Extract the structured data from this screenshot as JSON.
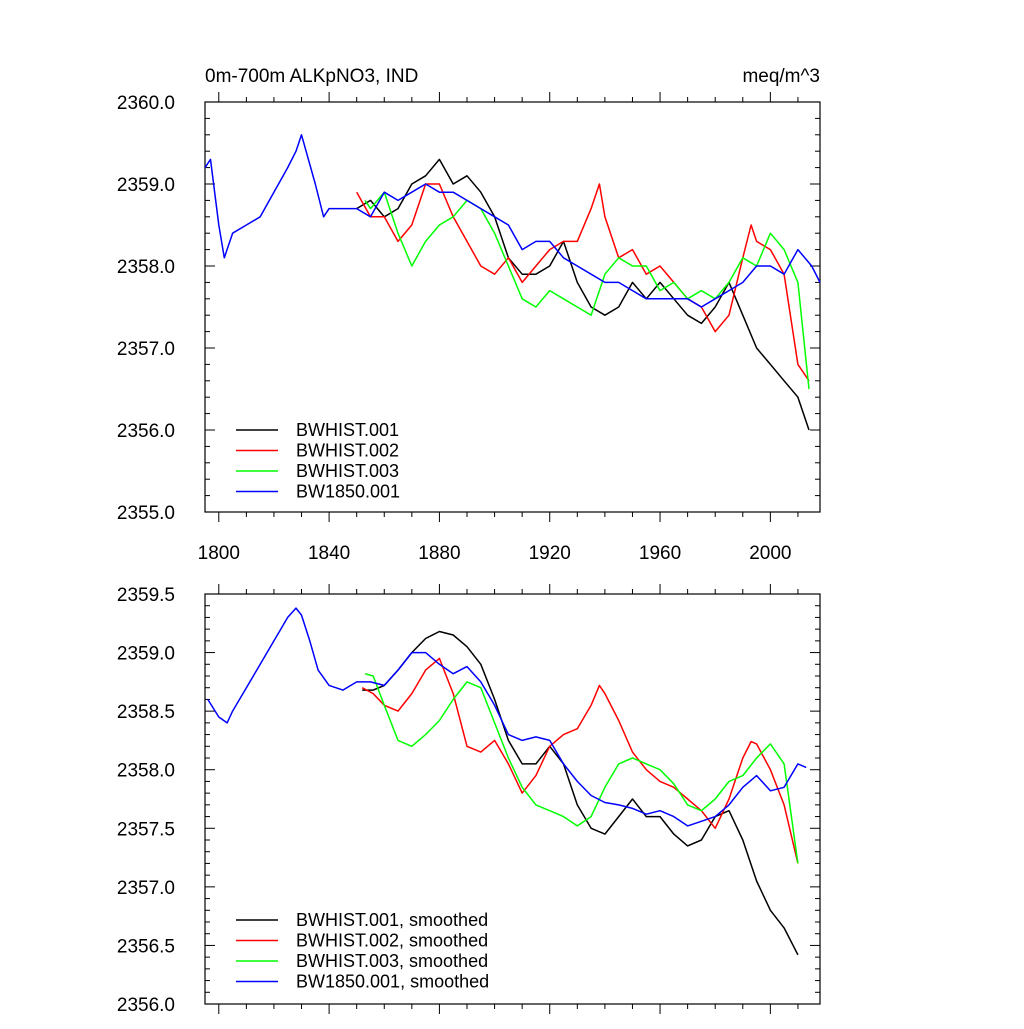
{
  "chart_data": [
    {
      "type": "line",
      "title": "0m-700m ALKpNO3, IND",
      "units": "meq/m^3",
      "ylim": [
        2355.0,
        2360.0
      ],
      "xlim": [
        1795,
        2018
      ],
      "yticks": [
        2355.0,
        2356.0,
        2357.0,
        2358.0,
        2359.0,
        2360.0
      ],
      "ytick_labels": [
        "2355.0",
        "2356.0",
        "2357.0",
        "2358.0",
        "2359.0",
        "2360.0"
      ],
      "xticks": [
        1800,
        1840,
        1880,
        1920,
        1960,
        2000
      ],
      "xtick_labels": [
        "1800",
        "1840",
        "1880",
        "1920",
        "1960",
        "2000"
      ],
      "legend_position": "bottom-left",
      "series": [
        {
          "name": "BWHIST.001",
          "color": "#000000",
          "x": [
            1850,
            1855,
            1860,
            1865,
            1870,
            1875,
            1880,
            1885,
            1890,
            1895,
            1900,
            1905,
            1910,
            1915,
            1920,
            1925,
            1930,
            1935,
            1940,
            1945,
            1950,
            1955,
            1960,
            1965,
            1970,
            1975,
            1980,
            1985,
            1990,
            1995,
            2000,
            2005,
            2010,
            2014
          ],
          "y": [
            2358.7,
            2358.8,
            2358.6,
            2358.7,
            2359.0,
            2359.1,
            2359.3,
            2359.0,
            2359.1,
            2358.9,
            2358.6,
            2358.1,
            2357.9,
            2357.9,
            2358.0,
            2358.3,
            2357.8,
            2357.5,
            2357.4,
            2357.5,
            2357.8,
            2357.6,
            2357.8,
            2357.6,
            2357.4,
            2357.3,
            2357.5,
            2357.8,
            2357.4,
            2357.0,
            2356.8,
            2356.6,
            2356.4,
            2356.0
          ]
        },
        {
          "name": "BWHIST.002",
          "color": "#ff0000",
          "x": [
            1850,
            1855,
            1860,
            1865,
            1870,
            1875,
            1880,
            1885,
            1890,
            1895,
            1900,
            1905,
            1910,
            1915,
            1920,
            1925,
            1930,
            1935,
            1938,
            1940,
            1945,
            1950,
            1955,
            1960,
            1965,
            1970,
            1975,
            1980,
            1985,
            1990,
            1993,
            1995,
            2000,
            2005,
            2010,
            2014
          ],
          "y": [
            2358.9,
            2358.6,
            2358.6,
            2358.3,
            2358.5,
            2359.0,
            2359.0,
            2358.6,
            2358.3,
            2358.0,
            2357.9,
            2358.1,
            2357.8,
            2358.0,
            2358.2,
            2358.3,
            2358.3,
            2358.7,
            2359.0,
            2358.6,
            2358.1,
            2358.2,
            2357.9,
            2358.0,
            2357.8,
            2357.6,
            2357.5,
            2357.2,
            2357.4,
            2358.1,
            2358.5,
            2358.3,
            2358.2,
            2357.9,
            2356.8,
            2356.6
          ]
        },
        {
          "name": "BWHIST.003",
          "color": "#00ff00",
          "x": [
            1853,
            1855,
            1860,
            1865,
            1870,
            1875,
            1880,
            1885,
            1890,
            1895,
            1900,
            1905,
            1910,
            1915,
            1920,
            1925,
            1930,
            1935,
            1940,
            1945,
            1950,
            1955,
            1960,
            1965,
            1970,
            1975,
            1980,
            1985,
            1990,
            1995,
            2000,
            2005,
            2010,
            2014
          ],
          "y": [
            2358.8,
            2358.7,
            2358.9,
            2358.4,
            2358.0,
            2358.3,
            2358.5,
            2358.6,
            2358.8,
            2358.7,
            2358.4,
            2358.0,
            2357.6,
            2357.5,
            2357.7,
            2357.6,
            2357.5,
            2357.4,
            2357.9,
            2358.1,
            2358.0,
            2358.0,
            2357.7,
            2357.8,
            2357.6,
            2357.7,
            2357.6,
            2357.8,
            2358.1,
            2358.0,
            2358.4,
            2358.2,
            2357.8,
            2356.5
          ]
        },
        {
          "name": "BW1850.001",
          "color": "#0000ff",
          "x": [
            1795,
            1797,
            1800,
            1802,
            1805,
            1810,
            1815,
            1820,
            1825,
            1828,
            1830,
            1835,
            1838,
            1840,
            1845,
            1850,
            1855,
            1860,
            1865,
            1870,
            1875,
            1880,
            1885,
            1890,
            1895,
            1900,
            1905,
            1910,
            1915,
            1920,
            1925,
            1930,
            1935,
            1940,
            1945,
            1950,
            1955,
            1960,
            1965,
            1970,
            1975,
            1980,
            1985,
            1990,
            1995,
            2000,
            2005,
            2010,
            2015,
            2018
          ],
          "y": [
            2359.2,
            2359.3,
            2358.5,
            2358.1,
            2358.4,
            2358.5,
            2358.6,
            2358.9,
            2359.2,
            2359.4,
            2359.6,
            2359.0,
            2358.6,
            2358.7,
            2358.7,
            2358.7,
            2358.6,
            2358.9,
            2358.8,
            2358.9,
            2359.0,
            2358.9,
            2358.9,
            2358.8,
            2358.7,
            2358.6,
            2358.5,
            2358.2,
            2358.3,
            2358.3,
            2358.1,
            2358.0,
            2357.9,
            2357.8,
            2357.8,
            2357.7,
            2357.6,
            2357.6,
            2357.6,
            2357.6,
            2357.5,
            2357.6,
            2357.7,
            2357.8,
            2358.0,
            2358.0,
            2357.9,
            2358.2,
            2358.0,
            2357.8
          ]
        }
      ]
    },
    {
      "type": "line",
      "ylim": [
        2356.0,
        2359.5
      ],
      "xlim": [
        1795,
        2018
      ],
      "yticks": [
        2356.0,
        2356.5,
        2357.0,
        2357.5,
        2358.0,
        2358.5,
        2359.0,
        2359.5
      ],
      "ytick_labels": [
        "2356.0",
        "2356.5",
        "2357.0",
        "2357.5",
        "2358.0",
        "2358.5",
        "2359.0",
        "2359.5"
      ],
      "xticks": [
        1800,
        1840,
        1880,
        1920,
        1960,
        2000
      ],
      "legend_position": "bottom-left",
      "series": [
        {
          "name": "BWHIST.001, smoothed",
          "color": "#000000",
          "x": [
            1852,
            1856,
            1860,
            1865,
            1870,
            1875,
            1880,
            1885,
            1890,
            1895,
            1900,
            1905,
            1910,
            1915,
            1920,
            1925,
            1930,
            1935,
            1940,
            1945,
            1950,
            1955,
            1960,
            1965,
            1970,
            1975,
            1980,
            1985,
            1990,
            1995,
            2000,
            2005,
            2010
          ],
          "y": [
            2358.68,
            2358.68,
            2358.72,
            2358.85,
            2359.0,
            2359.12,
            2359.18,
            2359.15,
            2359.05,
            2358.9,
            2358.6,
            2358.25,
            2358.05,
            2358.05,
            2358.2,
            2358.05,
            2357.7,
            2357.5,
            2357.45,
            2357.6,
            2357.75,
            2357.6,
            2357.6,
            2357.45,
            2357.35,
            2357.4,
            2357.6,
            2357.65,
            2357.4,
            2357.05,
            2356.8,
            2356.65,
            2356.42
          ]
        },
        {
          "name": "BWHIST.002, smoothed",
          "color": "#ff0000",
          "x": [
            1852,
            1856,
            1860,
            1865,
            1870,
            1875,
            1880,
            1885,
            1890,
            1895,
            1900,
            1905,
            1910,
            1915,
            1920,
            1925,
            1930,
            1935,
            1938,
            1940,
            1945,
            1950,
            1955,
            1960,
            1965,
            1970,
            1975,
            1980,
            1985,
            1990,
            1993,
            1995,
            2000,
            2005,
            2010
          ],
          "y": [
            2358.7,
            2358.65,
            2358.55,
            2358.5,
            2358.65,
            2358.85,
            2358.95,
            2358.65,
            2358.2,
            2358.15,
            2358.25,
            2358.05,
            2357.8,
            2357.95,
            2358.2,
            2358.3,
            2358.35,
            2358.55,
            2358.72,
            2358.65,
            2358.42,
            2358.15,
            2358.0,
            2357.9,
            2357.85,
            2357.75,
            2357.65,
            2357.5,
            2357.75,
            2358.1,
            2358.24,
            2358.22,
            2358.0,
            2357.7,
            2357.2
          ]
        },
        {
          "name": "BWHIST.003, smoothed",
          "color": "#00ff00",
          "x": [
            1853,
            1856,
            1860,
            1865,
            1870,
            1875,
            1880,
            1885,
            1890,
            1895,
            1900,
            1905,
            1910,
            1915,
            1920,
            1925,
            1930,
            1935,
            1940,
            1945,
            1950,
            1955,
            1960,
            1965,
            1970,
            1975,
            1980,
            1985,
            1990,
            1995,
            2000,
            2005,
            2010
          ],
          "y": [
            2358.82,
            2358.8,
            2358.55,
            2358.25,
            2358.2,
            2358.3,
            2358.42,
            2358.6,
            2358.75,
            2358.7,
            2358.4,
            2358.1,
            2357.85,
            2357.7,
            2357.65,
            2357.6,
            2357.52,
            2357.6,
            2357.85,
            2358.05,
            2358.1,
            2358.05,
            2358.0,
            2357.88,
            2357.7,
            2357.65,
            2357.75,
            2357.9,
            2357.95,
            2358.1,
            2358.22,
            2358.05,
            2357.2
          ]
        },
        {
          "name": "BW1850.001, smoothed",
          "color": "#0000ff",
          "x": [
            1796,
            1800,
            1803,
            1805,
            1810,
            1815,
            1820,
            1825,
            1828,
            1830,
            1833,
            1836,
            1840,
            1845,
            1850,
            1855,
            1860,
            1865,
            1870,
            1875,
            1880,
            1885,
            1890,
            1895,
            1900,
            1905,
            1910,
            1915,
            1920,
            1925,
            1930,
            1935,
            1940,
            1945,
            1950,
            1955,
            1960,
            1965,
            1970,
            1975,
            1980,
            1985,
            1990,
            1995,
            2000,
            2005,
            2010,
            2013
          ],
          "y": [
            2358.6,
            2358.45,
            2358.4,
            2358.5,
            2358.7,
            2358.9,
            2359.1,
            2359.3,
            2359.38,
            2359.32,
            2359.1,
            2358.85,
            2358.72,
            2358.68,
            2358.75,
            2358.75,
            2358.72,
            2358.85,
            2359.0,
            2359.0,
            2358.9,
            2358.82,
            2358.88,
            2358.75,
            2358.55,
            2358.3,
            2358.25,
            2358.28,
            2358.25,
            2358.05,
            2357.9,
            2357.78,
            2357.72,
            2357.7,
            2357.67,
            2357.62,
            2357.65,
            2357.6,
            2357.52,
            2357.56,
            2357.6,
            2357.7,
            2357.85,
            2357.95,
            2357.82,
            2357.85,
            2358.05,
            2358.02
          ]
        }
      ]
    }
  ]
}
